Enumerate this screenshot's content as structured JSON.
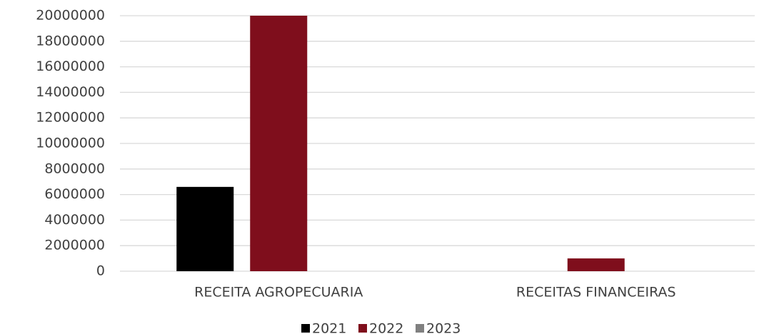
{
  "chart_data": {
    "type": "bar",
    "categories": [
      "RECEITA AGROPECUARIA",
      "RECEITAS FINANCEIRAS"
    ],
    "series": [
      {
        "name": "2021",
        "color": "#000000",
        "values": [
          6600000,
          0
        ]
      },
      {
        "name": "2022",
        "color": "#7f0e1c",
        "values": [
          20000000,
          1000000
        ]
      },
      {
        "name": "2023",
        "color": "#808080",
        "values": [
          0,
          0
        ]
      }
    ],
    "ylim": [
      0,
      20000000
    ],
    "yticks": [
      0,
      2000000,
      4000000,
      6000000,
      8000000,
      10000000,
      12000000,
      14000000,
      16000000,
      18000000,
      20000000
    ],
    "grid": true,
    "legend": "bottom"
  }
}
